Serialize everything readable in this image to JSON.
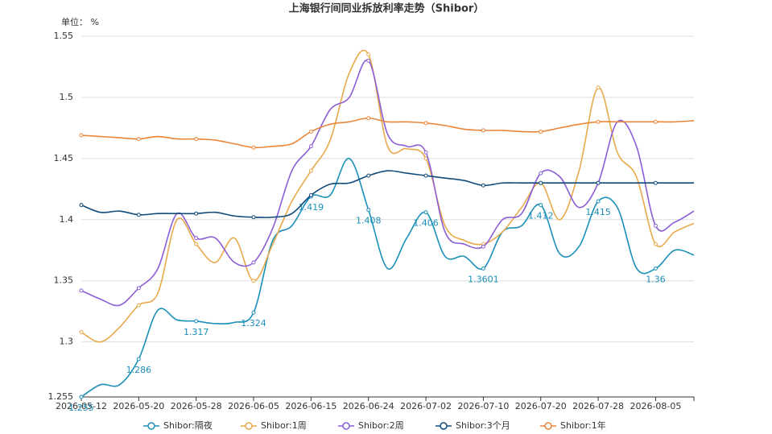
{
  "chart_data": {
    "type": "line",
    "title": "上海银行间同业拆放利率走势（Shibor）",
    "y_label": "单位： %",
    "categories": [
      "2026-05-12",
      null,
      null,
      "2026-05-20",
      null,
      null,
      "2026-05-28",
      null,
      null,
      "2026-06-05",
      null,
      null,
      "2026-06-15",
      null,
      null,
      "2026-06-24",
      null,
      null,
      "2026-07-02",
      null,
      null,
      "2026-07-10",
      null,
      null,
      "2026-07-20",
      null,
      null,
      "2026-07-28",
      null,
      null,
      "2026-08-05",
      null,
      null
    ],
    "ylim": [
      1.255,
      1.55
    ],
    "yticks": [
      1.255,
      1.3,
      1.35,
      1.4,
      1.45,
      1.5,
      1.55
    ],
    "grid": true,
    "smooth": true,
    "legend": "bottom",
    "series": [
      {
        "name": "Shibor:隔夜",
        "color": "#1a8fb8",
        "data_labels": true,
        "values": [
          1.255,
          1.265,
          1.265,
          1.286,
          1.326,
          1.318,
          1.317,
          1.315,
          1.316,
          1.324,
          1.383,
          1.395,
          1.419,
          1.42,
          1.45,
          1.408,
          1.36,
          1.385,
          1.406,
          1.37,
          1.37,
          1.3601,
          1.39,
          1.395,
          1.412,
          1.372,
          1.378,
          1.415,
          1.41,
          1.3604,
          1.36,
          1.375,
          1.371
        ]
      },
      {
        "name": "Shibor:1周",
        "color": "#e8a94a",
        "values": [
          1.308,
          1.3,
          1.312,
          1.33,
          1.34,
          1.4,
          1.38,
          1.365,
          1.385,
          1.35,
          1.38,
          1.415,
          1.44,
          1.465,
          1.52,
          1.535,
          1.46,
          1.458,
          1.45,
          1.395,
          1.383,
          1.38,
          1.39,
          1.41,
          1.43,
          1.4,
          1.44,
          1.508,
          1.455,
          1.435,
          1.38,
          1.39,
          1.397
        ]
      },
      {
        "name": "Shibor:2周",
        "color": "#8b5ed6",
        "values": [
          1.342,
          1.335,
          1.33,
          1.344,
          1.36,
          1.405,
          1.385,
          1.385,
          1.365,
          1.365,
          1.393,
          1.44,
          1.46,
          1.49,
          1.5,
          1.53,
          1.47,
          1.46,
          1.455,
          1.39,
          1.38,
          1.378,
          1.4,
          1.405,
          1.438,
          1.435,
          1.41,
          1.43,
          1.48,
          1.46,
          1.395,
          1.398,
          1.407
        ]
      },
      {
        "name": "Shibor:3个月",
        "color": "#0f4a7a",
        "values": [
          1.412,
          1.406,
          1.407,
          1.404,
          1.405,
          1.405,
          1.405,
          1.406,
          1.403,
          1.402,
          1.402,
          1.405,
          1.42,
          1.429,
          1.43,
          1.436,
          1.44,
          1.438,
          1.436,
          1.434,
          1.432,
          1.428,
          1.43,
          1.43,
          1.43,
          1.43,
          1.43,
          1.43,
          1.43,
          1.43,
          1.43,
          1.43,
          1.43
        ]
      },
      {
        "name": "Shibor:1年",
        "color": "#e8863a",
        "values": [
          1.469,
          1.468,
          1.467,
          1.466,
          1.468,
          1.466,
          1.466,
          1.465,
          1.462,
          1.459,
          1.46,
          1.462,
          1.472,
          1.478,
          1.48,
          1.483,
          1.48,
          1.48,
          1.479,
          1.477,
          1.474,
          1.473,
          1.473,
          1.472,
          1.472,
          1.475,
          1.478,
          1.48,
          1.48,
          1.48,
          1.48,
          1.48,
          1.481
        ]
      }
    ]
  }
}
